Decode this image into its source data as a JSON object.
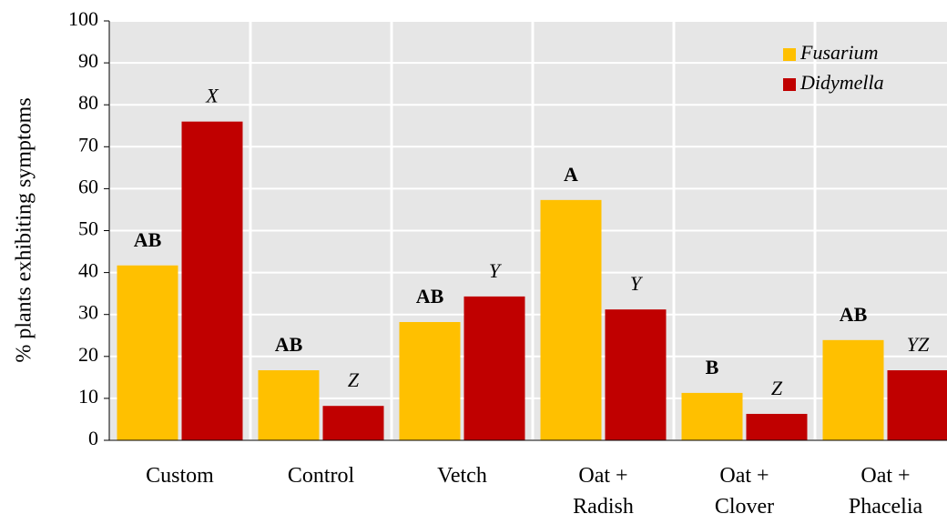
{
  "chart_data": {
    "type": "bar",
    "y_label": "% plants exhibiting symptoms",
    "categories": [
      "Custom",
      "Control",
      "Vetch",
      "Oat +\nRadish",
      "Oat +\nClover",
      "Oat +\nPhacelia"
    ],
    "series": [
      {
        "name": "Fusarium",
        "color": "#ffc000",
        "values": [
          41.7,
          16.7,
          28.2,
          57.3,
          11.3,
          23.9
        ],
        "letters": [
          "AB",
          "AB",
          "AB",
          "A",
          "B",
          "AB"
        ]
      },
      {
        "name": "Didymella",
        "color": "#c00000",
        "values": [
          76,
          8.2,
          34.3,
          31.2,
          6.3,
          16.7
        ],
        "letters": [
          "X",
          "Z",
          "Y",
          "Y",
          "Z",
          "YZ"
        ]
      }
    ],
    "ylim": [
      0,
      100
    ],
    "yticks": [
      0,
      10,
      20,
      30,
      40,
      50,
      60,
      70,
      80,
      90,
      100
    ],
    "grid": true,
    "legend": "top-right"
  }
}
